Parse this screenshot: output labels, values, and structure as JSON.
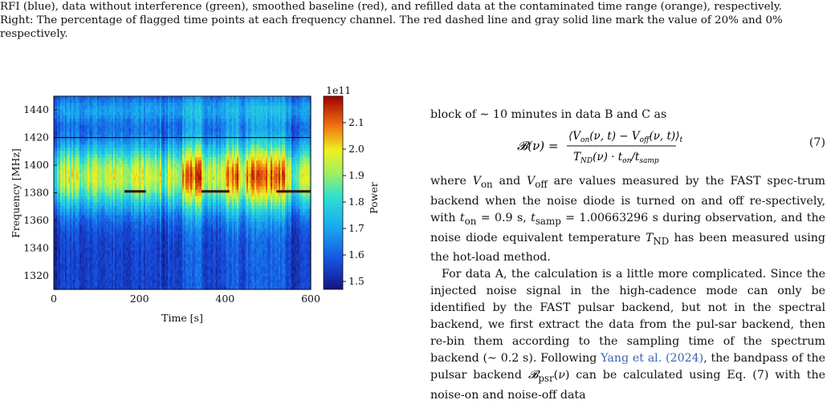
{
  "caption": {
    "line1": "RFI (blue), data without interference (green), smoothed baseline (red), and refilled data at the contaminated time range (orange), respectively.",
    "line2": "Right: The percentage of flagged time points at each frequency channel. The red dashed line and gray solid line mark the value of 20% and 0%",
    "line3": "respectively."
  },
  "figure": {
    "colors": {
      "low": "#1a1a9a",
      "mid": "#40e0a0",
      "high": "#a00000"
    },
    "chart_data": {
      "type": "heatmap",
      "xlabel": "Time [s]",
      "ylabel": "Frequency [MHz]",
      "xlim": [
        0,
        600
      ],
      "ylim": [
        1310,
        1450
      ],
      "x_ticks": [
        "0",
        "200",
        "400",
        "600"
      ],
      "y_ticks": [
        "1320",
        "1340",
        "1360",
        "1380",
        "1400",
        "1420",
        "1440"
      ],
      "colorbar": {
        "label": "Power",
        "scale_label": "1e11",
        "ticks": [
          "1.5",
          "1.6",
          "1.7",
          "1.8",
          "1.9",
          "2.0",
          "2.1"
        ],
        "range": [
          1.47,
          2.2
        ]
      },
      "grid": false,
      "features": {
        "horizontal_line_mhz": 1420,
        "rfi_segments": [
          {
            "t_start": 165,
            "t_end": 215,
            "freq": 1381
          },
          {
            "t_start": 345,
            "t_end": 410,
            "freq": 1381
          },
          {
            "t_start": 520,
            "t_end": 600,
            "freq": 1381
          }
        ],
        "bright_time_ranges": [
          [
            300,
            345
          ],
          [
            400,
            430
          ],
          [
            450,
            540
          ]
        ],
        "dark_time_ranges": [
          [
            0,
            15
          ],
          [
            60,
            75
          ],
          [
            250,
            265
          ],
          [
            555,
            575
          ]
        ]
      }
    }
  },
  "body": {
    "p1_intro": "block of ∼ 10 minutes in data B and C as",
    "eq_number": "(7)",
    "p1_after_1": "where",
    "p1_after_2": "and",
    "p1_after_3": "are values measured by the FAST spec-trum backend when the noise diode is turned on and off re-spectively, with",
    "p1_after_4": "s,",
    "p1_after_5": "s during observation, and the noise diode equivalent temperature",
    "p1_after_6": "has been measured using the hot-load method.",
    "p2_part1": "For data A, the calculation is a little more complicated. Since the injected noise signal in the high-cadence mode can only be identified by the FAST pulsar backend, but not in the spectral backend, we first extract the data from the pul-sar backend, then re-bin them according to the sampling time of the spectrum backend (∼ 0.2 s). Following",
    "p2_cite": "Yang et al. (2024)",
    "p2_part2": ", the bandpass of the pulsar backend",
    "p2_part3": "can be calculated using Eq. (7) with the noise-on and noise-off data"
  }
}
